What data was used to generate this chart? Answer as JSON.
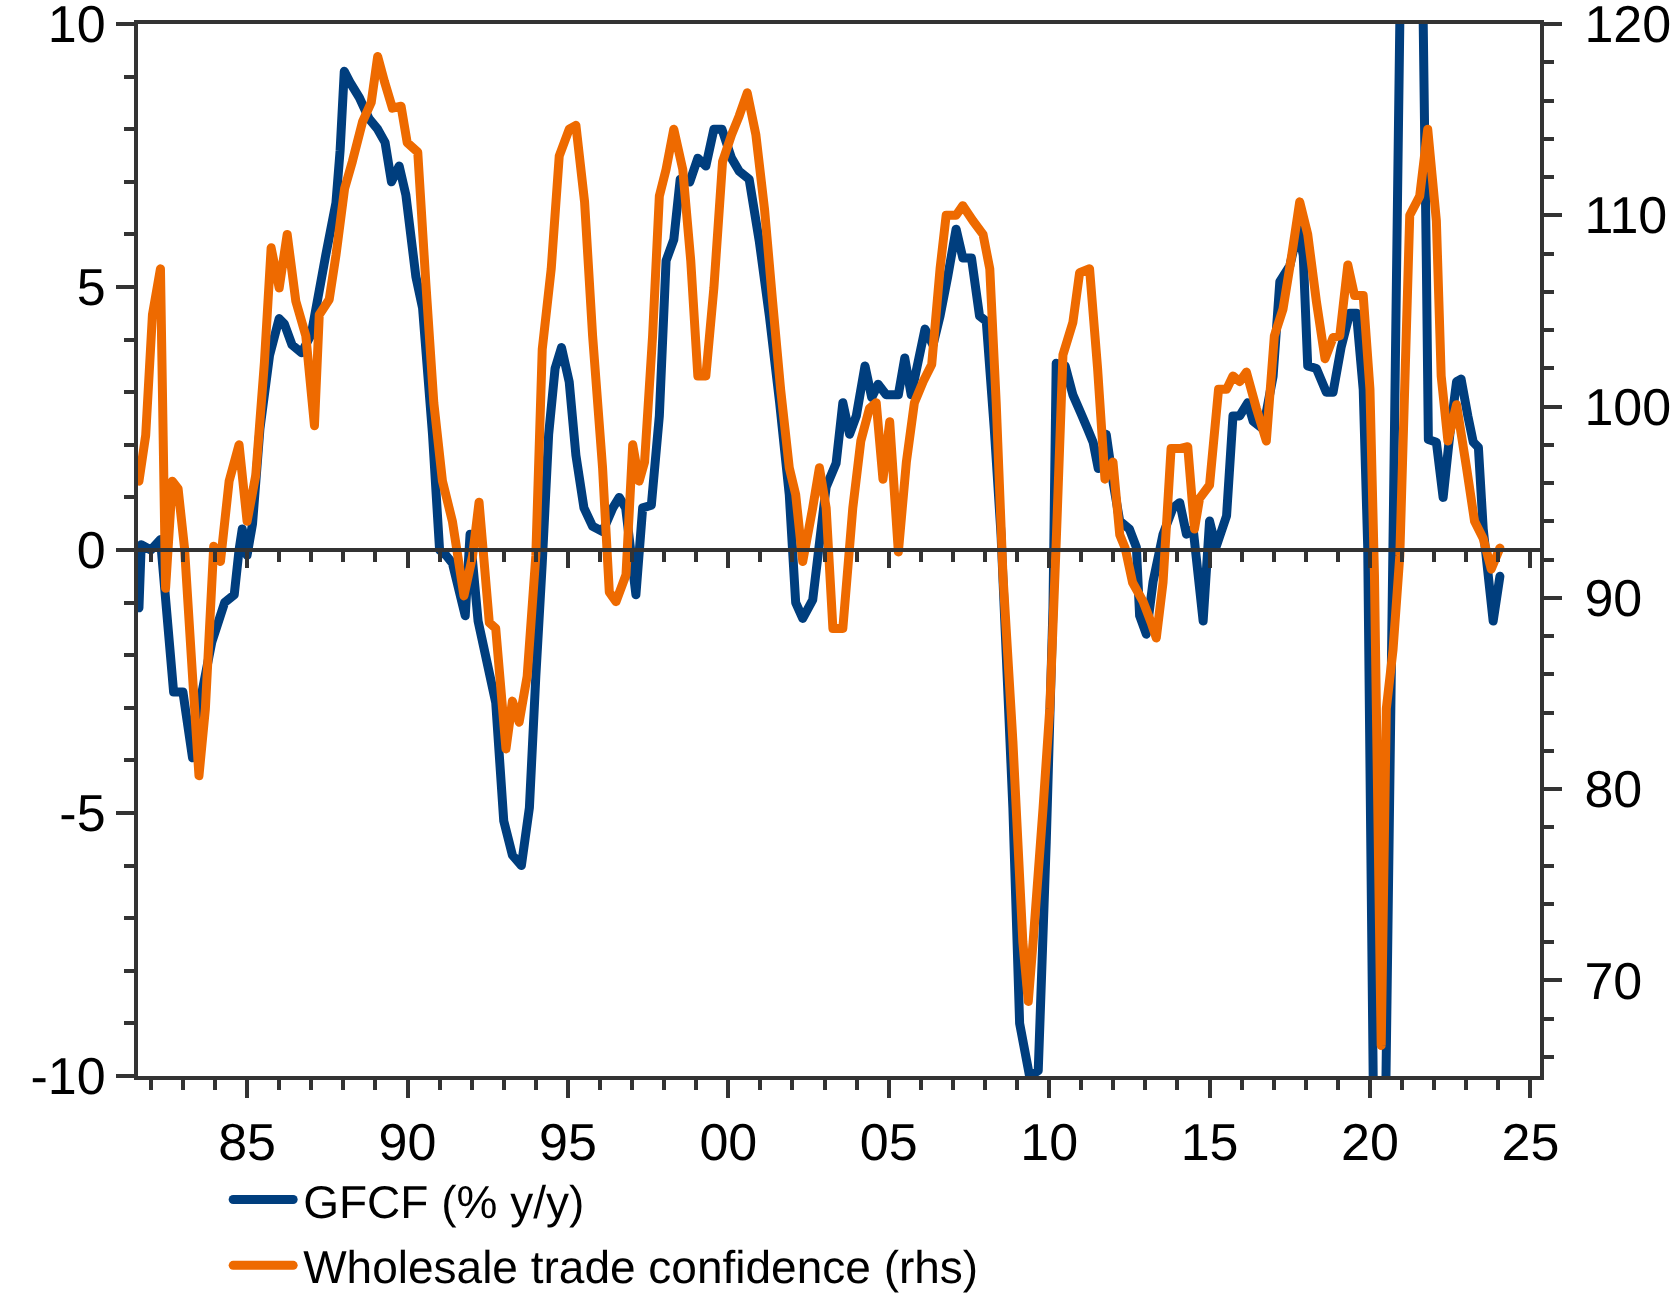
{
  "chart_data": {
    "type": "line",
    "series": [
      {
        "name": "GFCF (% y/y)",
        "color": "#003e7e",
        "x": [
          1981.63,
          1981.7,
          1982.0,
          1982.3,
          1982.71,
          1983.0,
          1983.3,
          1983.5,
          1983.9,
          1984.3,
          1984.6,
          1984.75,
          1984.85,
          1985.0,
          1985.17,
          1985.4,
          1985.7,
          1986.0,
          1986.16,
          1986.4,
          1986.7,
          1987.0,
          1987.45,
          1987.77,
          1987.9,
          1988.03,
          1988.2,
          1988.5,
          1988.8,
          1989.07,
          1989.3,
          1989.5,
          1989.74,
          1989.95,
          1990.26,
          1990.47,
          1990.78,
          1991.0,
          1991.2,
          1991.4,
          1991.8,
          1991.95,
          1992.2,
          1992.75,
          1993.0,
          1993.27,
          1993.55,
          1993.8,
          1994.0,
          1994.2,
          1994.4,
          1994.6,
          1994.8,
          1995.04,
          1995.25,
          1995.5,
          1995.77,
          1996.08,
          1996.4,
          1996.6,
          1996.8,
          1997.12,
          1997.33,
          1997.6,
          1997.85,
          1998.06,
          1998.3,
          1998.5,
          1998.8,
          1999.05,
          1999.3,
          1999.55,
          1999.8,
          2000.1,
          2000.34,
          2000.65,
          2000.97,
          2001.28,
          2001.6,
          2001.9,
          2002.1,
          2002.32,
          2002.63,
          2003.05,
          2003.36,
          2003.57,
          2003.78,
          2003.99,
          2004.26,
          2004.47,
          2004.67,
          2004.92,
          2005.3,
          2005.5,
          2005.7,
          2006.13,
          2006.38,
          2006.6,
          2006.84,
          2007.1,
          2007.31,
          2007.58,
          2007.83,
          2008.04,
          2008.29,
          2008.5,
          2008.87,
          2009.08,
          2009.39,
          2009.66,
          2009.91,
          2010.12,
          2010.22,
          2010.5,
          2010.74,
          2010.99,
          2011.2,
          2011.37,
          2011.53,
          2011.78,
          2011.99,
          2012.2,
          2012.5,
          2012.72,
          2012.82,
          2013.03,
          2013.24,
          2013.55,
          2013.86,
          2014.07,
          2014.28,
          2014.49,
          2014.8,
          2015.0,
          2015.2,
          2015.53,
          2015.73,
          2015.94,
          2016.19,
          2016.36,
          2016.67,
          2016.98,
          2017.19,
          2017.5,
          2017.77,
          2017.92,
          2018.06,
          2018.33,
          2018.64,
          2018.85,
          2019.1,
          2019.37,
          2019.58,
          2019.79,
          2019.93,
          2020.1,
          2020.3,
          2020.5,
          2020.93,
          2021.3,
          2021.66,
          2021.76,
          2021.82,
          2022.07,
          2022.28,
          2022.49,
          2022.7,
          2022.84,
          2023.05,
          2023.22,
          2023.38,
          2023.53,
          2023.84,
          2024.05
        ],
        "values": [
          -1.1,
          0.1,
          0.0,
          0.2,
          -2.7,
          -2.7,
          -3.95,
          -3.0,
          -1.75,
          -1.0,
          -0.85,
          0.0,
          0.4,
          -0.1,
          0.5,
          2.3,
          3.7,
          4.4,
          4.3,
          3.9,
          3.75,
          4.1,
          5.6,
          6.6,
          7.6,
          9.1,
          8.9,
          8.6,
          8.2,
          8.0,
          7.75,
          7.0,
          7.3,
          6.75,
          5.2,
          4.6,
          2.2,
          0.0,
          -0.1,
          -0.25,
          -1.25,
          0.3,
          -1.35,
          -2.9,
          -5.15,
          -5.8,
          -6.0,
          -4.9,
          -2.4,
          -0.25,
          2.2,
          3.45,
          3.85,
          3.2,
          1.8,
          0.8,
          0.45,
          0.35,
          0.8,
          1.0,
          0.8,
          -0.85,
          0.8,
          0.85,
          2.55,
          5.5,
          5.9,
          7.05,
          7.0,
          7.45,
          7.3,
          8.0,
          8.0,
          7.45,
          7.2,
          7.05,
          5.85,
          4.45,
          2.8,
          1.05,
          -1.0,
          -1.3,
          -0.95,
          1.2,
          1.65,
          2.8,
          2.2,
          2.55,
          3.5,
          2.9,
          3.15,
          2.95,
          2.95,
          3.65,
          2.95,
          4.2,
          3.9,
          4.45,
          5.2,
          6.1,
          5.55,
          5.55,
          4.45,
          4.35,
          2.3,
          0.3,
          -4.9,
          -9.0,
          -10,
          -9.9,
          -5.55,
          -1.1,
          3.55,
          3.5,
          2.95,
          2.6,
          2.3,
          2.05,
          1.55,
          2.2,
          1.3,
          0.55,
          0.4,
          0.05,
          -1.25,
          -1.6,
          -0.6,
          0.3,
          0.8,
          0.9,
          0.3,
          0.4,
          -1.35,
          0.55,
          0.05,
          0.65,
          2.55,
          2.55,
          2.8,
          2.45,
          2.3,
          3.3,
          5.1,
          5.4,
          6.1,
          5.6,
          3.5,
          3.45,
          3.0,
          3.0,
          3.85,
          4.5,
          4.5,
          3.05,
          0.05,
          -10,
          null,
          -10,
          10,
          null,
          10,
          5.35,
          2.1,
          2.05,
          1.0,
          2.2,
          3.2,
          3.25,
          2.55,
          2.05,
          1.95,
          0.4,
          -1.35,
          -0.5
        ]
      },
      {
        "name": "Wholesale trade confidence (rhs)",
        "color": "#ee6a00",
        "axis": "y2",
        "x": [
          1981.63,
          1981.84,
          1982.05,
          1982.3,
          1982.46,
          1982.67,
          1982.85,
          1983.05,
          1983.3,
          1983.5,
          1983.7,
          1983.96,
          1984.17,
          1984.44,
          1984.75,
          1985.0,
          1985.27,
          1985.54,
          1985.75,
          1986.0,
          1986.25,
          1986.52,
          1986.83,
          1987.1,
          1987.25,
          1987.56,
          1987.77,
          1988.04,
          1988.28,
          1988.6,
          1988.87,
          1989.07,
          1989.28,
          1989.53,
          1989.8,
          1989.99,
          1990.32,
          1990.57,
          1990.82,
          1991.09,
          1991.4,
          1991.76,
          1992.03,
          1992.23,
          1992.55,
          1992.75,
          1993.07,
          1993.27,
          1993.48,
          1993.73,
          1994.0,
          1994.2,
          1994.48,
          1994.73,
          1995.04,
          1995.25,
          1995.52,
          1995.77,
          1996.08,
          1996.29,
          1996.5,
          1996.81,
          1997.02,
          1997.22,
          1997.39,
          1997.64,
          1997.85,
          1998.06,
          1998.3,
          1998.58,
          1998.83,
          1999.05,
          1999.3,
          1999.55,
          1999.82,
          2000.1,
          2000.34,
          2000.59,
          2000.86,
          2001.13,
          2001.38,
          2001.63,
          2001.9,
          2002.1,
          2002.32,
          2002.63,
          2002.84,
          2003.05,
          2003.26,
          2003.57,
          2003.88,
          2004.13,
          2004.4,
          2004.61,
          2004.82,
          2005.03,
          2005.3,
          2005.55,
          2005.8,
          2006.07,
          2006.34,
          2006.6,
          2006.79,
          2007.1,
          2007.31,
          2007.63,
          2007.94,
          2008.15,
          2008.35,
          2008.56,
          2008.87,
          2009.18,
          2009.35,
          2009.5,
          2009.81,
          2010.02,
          2010.22,
          2010.43,
          2010.74,
          2010.95,
          2011.26,
          2011.51,
          2011.74,
          2011.99,
          2012.2,
          2012.37,
          2012.6,
          2012.93,
          2013.18,
          2013.34,
          2013.55,
          2013.8,
          2014.07,
          2014.32,
          2014.53,
          2014.69,
          2015.0,
          2015.28,
          2015.53,
          2015.73,
          2015.94,
          2016.15,
          2016.46,
          2016.77,
          2017.02,
          2017.29,
          2017.56,
          2017.81,
          2018.06,
          2018.33,
          2018.6,
          2018.85,
          2019.06,
          2019.31,
          2019.52,
          2019.79,
          2020.0,
          2020.14,
          2020.35,
          2020.51,
          2020.72,
          2020.93,
          2021.24,
          2021.55,
          2021.8,
          2022.07,
          2022.22,
          2022.43,
          2022.7,
          2023.01,
          2023.26,
          2023.53,
          2023.78,
          2024.05
        ],
        "values": [
          96.1,
          98.5,
          104.8,
          107.2,
          90.5,
          96.1,
          95.7,
          92.6,
          85.9,
          80.7,
          84.2,
          92.7,
          91.9,
          96.1,
          98.0,
          94.0,
          96.4,
          102.3,
          108.3,
          106.2,
          109.0,
          105.5,
          103.7,
          99.0,
          104.8,
          105.6,
          107.9,
          111.4,
          112.8,
          114.9,
          115.9,
          118.3,
          117.0,
          115.6,
          115.7,
          113.8,
          113.3,
          106.5,
          100.2,
          96.1,
          94.0,
          90.1,
          92.2,
          95.0,
          88.7,
          88.4,
          82.1,
          84.6,
          83.5,
          85.9,
          92.2,
          103.0,
          107.2,
          113.1,
          114.5,
          114.7,
          110.7,
          103.7,
          96.8,
          90.3,
          89.8,
          91.2,
          98.0,
          96.1,
          97.1,
          103.7,
          111.0,
          112.4,
          114.5,
          112.4,
          107.6,
          101.6,
          101.6,
          106.2,
          112.8,
          114.2,
          115.2,
          116.4,
          114.2,
          110.3,
          105.5,
          100.9,
          96.8,
          95.4,
          91.9,
          94.7,
          96.8,
          94.7,
          88.4,
          88.4,
          94.7,
          98.2,
          99.9,
          100.2,
          96.2,
          99.2,
          92.4,
          97.1,
          100.2,
          101.3,
          102.2,
          107.2,
          110.0,
          110.0,
          110.5,
          109.7,
          109.0,
          107.2,
          100.2,
          91.2,
          82.5,
          72.0,
          68.9,
          72.0,
          79.0,
          84.2,
          92.9,
          102.7,
          104.4,
          107.0,
          107.2,
          102.0,
          96.2,
          97.1,
          93.3,
          92.6,
          90.8,
          89.8,
          88.7,
          87.9,
          90.8,
          97.8,
          97.8,
          97.9,
          93.6,
          95.2,
          95.9,
          100.9,
          100.9,
          101.6,
          101.3,
          101.8,
          99.9,
          98.2,
          103.7,
          105.1,
          107.9,
          110.7,
          109.0,
          105.5,
          102.5,
          103.6,
          103.7,
          107.4,
          105.8,
          105.8,
          100.9,
          91.2,
          66.6,
          84.2,
          87.3,
          92.2,
          110.0,
          111.0,
          114.5,
          109.7,
          101.6,
          98.2,
          100.1,
          96.8,
          94.0,
          93.1,
          91.5,
          92.6
        ]
      }
    ],
    "xlim": [
      1981.6,
      2025.3
    ],
    "xticks": [
      {
        "value": 1982,
        "label": null
      },
      {
        "value": 1983,
        "label": null
      },
      {
        "value": 1984,
        "label": null
      },
      {
        "value": 1985,
        "label": "85"
      },
      {
        "value": 1986,
        "label": null
      },
      {
        "value": 1987,
        "label": null
      },
      {
        "value": 1988,
        "label": null
      },
      {
        "value": 1989,
        "label": null
      },
      {
        "value": 1990,
        "label": "90"
      },
      {
        "value": 1991,
        "label": null
      },
      {
        "value": 1992,
        "label": null
      },
      {
        "value": 1993,
        "label": null
      },
      {
        "value": 1994,
        "label": null
      },
      {
        "value": 1995,
        "label": "95"
      },
      {
        "value": 1996,
        "label": null
      },
      {
        "value": 1997,
        "label": null
      },
      {
        "value": 1998,
        "label": null
      },
      {
        "value": 1999,
        "label": null
      },
      {
        "value": 2000,
        "label": "00"
      },
      {
        "value": 2001,
        "label": null
      },
      {
        "value": 2002,
        "label": null
      },
      {
        "value": 2003,
        "label": null
      },
      {
        "value": 2004,
        "label": null
      },
      {
        "value": 2005,
        "label": "05"
      },
      {
        "value": 2006,
        "label": null
      },
      {
        "value": 2007,
        "label": null
      },
      {
        "value": 2008,
        "label": null
      },
      {
        "value": 2009,
        "label": null
      },
      {
        "value": 2010,
        "label": "10"
      },
      {
        "value": 2011,
        "label": null
      },
      {
        "value": 2012,
        "label": null
      },
      {
        "value": 2013,
        "label": null
      },
      {
        "value": 2014,
        "label": null
      },
      {
        "value": 2015,
        "label": "15"
      },
      {
        "value": 2016,
        "label": null
      },
      {
        "value": 2017,
        "label": null
      },
      {
        "value": 2018,
        "label": null
      },
      {
        "value": 2019,
        "label": null
      },
      {
        "value": 2020,
        "label": "20"
      },
      {
        "value": 2021,
        "label": null
      },
      {
        "value": 2022,
        "label": null
      },
      {
        "value": 2023,
        "label": null
      },
      {
        "value": 2024,
        "label": null
      },
      {
        "value": 2025,
        "label": "25"
      }
    ],
    "ylim": [
      -10,
      10
    ],
    "yticks": [
      -10,
      {
        "value": -9,
        "label": null
      },
      {
        "value": -8,
        "label": null
      },
      {
        "value": -7,
        "label": null
      },
      {
        "value": -6,
        "label": null
      },
      -5,
      {
        "value": -4,
        "label": null
      },
      {
        "value": -3,
        "label": null
      },
      {
        "value": -2,
        "label": null
      },
      {
        "value": -1,
        "label": null
      },
      0,
      {
        "value": 1,
        "label": null
      },
      {
        "value": 2,
        "label": null
      },
      {
        "value": 3,
        "label": null
      },
      {
        "value": 4,
        "label": null
      },
      5,
      {
        "value": 6,
        "label": null
      },
      {
        "value": 7,
        "label": null
      },
      {
        "value": 8,
        "label": null
      },
      {
        "value": 9,
        "label": null
      },
      10
    ],
    "y2lim": [
      65,
      120
    ],
    "y2ticks": [
      {
        "value": 66,
        "label": null
      },
      {
        "value": 68,
        "label": null
      },
      70,
      {
        "value": 72,
        "label": null
      },
      {
        "value": 74,
        "label": null
      },
      {
        "value": 76,
        "label": null
      },
      {
        "value": 78,
        "label": null
      },
      80,
      {
        "value": 82,
        "label": null
      },
      {
        "value": 84,
        "label": null
      },
      {
        "value": 86,
        "label": null
      },
      {
        "value": 88,
        "label": null
      },
      90,
      {
        "value": 92,
        "label": null
      },
      {
        "value": 94,
        "label": null
      },
      {
        "value": 96,
        "label": null
      },
      {
        "value": 98,
        "label": null
      },
      100,
      {
        "value": 102,
        "label": null
      },
      {
        "value": 104,
        "label": null
      },
      {
        "value": 106,
        "label": null
      },
      {
        "value": 108,
        "label": null
      },
      110,
      {
        "value": 112,
        "label": null
      },
      {
        "value": 114,
        "label": null
      },
      {
        "value": 116,
        "label": null
      },
      {
        "value": 118,
        "label": null
      },
      120
    ],
    "ref_lines": [
      {
        "axis": "y",
        "value": 0
      }
    ],
    "legend": "bottom",
    "line_style": "solid"
  }
}
